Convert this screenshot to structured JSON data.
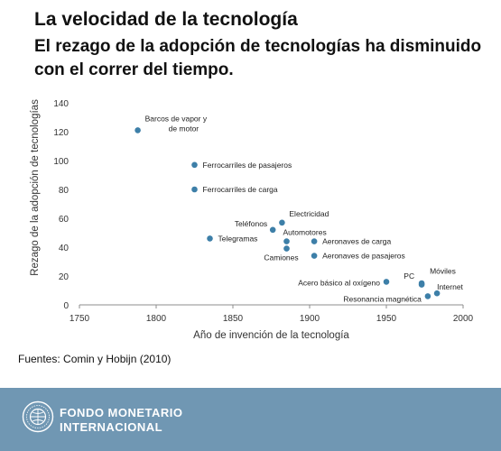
{
  "header": {
    "title": "La velocidad de la tecnología",
    "subtitle": "El rezago de la adopción de tecnologías ha disminuido con el correr del tiempo."
  },
  "source": "Fuentes: Comin y Hobijn (2010)",
  "footer": {
    "org_line1": "FONDO MONETARIO",
    "org_line2": "INTERNACIONAL",
    "background": "#7097b3",
    "logo_icon": "imf-seal-icon"
  },
  "chart_data": {
    "type": "scatter",
    "xlabel": "Año de invención de la tecnología",
    "ylabel": "Rezago de la adopción de tecnologías",
    "xlim": [
      1750,
      2000
    ],
    "ylim": [
      0,
      140
    ],
    "xticks": [
      1750,
      1800,
      1850,
      1900,
      1950,
      2000
    ],
    "yticks": [
      0,
      20,
      40,
      60,
      80,
      100,
      120,
      140
    ],
    "grid": false,
    "marker_color": "#3d7fa8",
    "points": [
      {
        "label": "Barcos de vapor y de motor",
        "x": 1788,
        "y": 121
      },
      {
        "label": "Ferrocarriles de pasajeros",
        "x": 1825,
        "y": 97
      },
      {
        "label": "Ferrocarriles de carga",
        "x": 1825,
        "y": 80
      },
      {
        "label": "Telegramas",
        "x": 1835,
        "y": 46
      },
      {
        "label": "Teléfonos",
        "x": 1876,
        "y": 52
      },
      {
        "label": "Electricidad",
        "x": 1882,
        "y": 57
      },
      {
        "label": "Automotores",
        "x": 1885,
        "y": 44
      },
      {
        "label": "Camiones",
        "x": 1885,
        "y": 39
      },
      {
        "label": "Aeronaves de carga",
        "x": 1903,
        "y": 44
      },
      {
        "label": "Aeronaves de pasajeros",
        "x": 1903,
        "y": 34
      },
      {
        "label": "Acero básico al oxígeno",
        "x": 1950,
        "y": 16
      },
      {
        "label": "PC",
        "x": 1973,
        "y": 15
      },
      {
        "label": "Móviles",
        "x": 1973,
        "y": 14
      },
      {
        "label": "Internet",
        "x": 1983,
        "y": 8
      },
      {
        "label": "Resonancia magnética",
        "x": 1977,
        "y": 6
      }
    ]
  }
}
